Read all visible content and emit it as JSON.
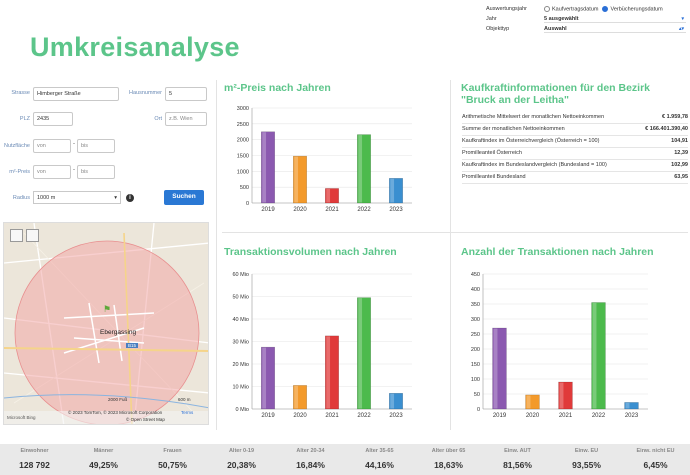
{
  "page": {
    "title": "Umkreisanalyse"
  },
  "filter": {
    "auswertungsjahr_label": "Auswertungsjahr",
    "option_kauf": "Kaufvertragsdatum",
    "option_verb": "Verbücherungsdatum",
    "jahr_label": "Jahr",
    "jahr_value": "5 ausgewählt",
    "objekttyp_label": "Objekttyp",
    "objekttyp_value": "Auswahl"
  },
  "form": {
    "strasse_label": "Strasse",
    "strasse_value": "Himberger Straße",
    "hausnummer_label": "Hausnummer",
    "hausnummer_value": "5",
    "plz_label": "PLZ",
    "plz_value": "2435",
    "ort_label": "Ort",
    "ort_placeholder": "z.B. Wien",
    "nutzflaeche_label": "Nutzfläche",
    "von_placeholder": "von",
    "bis_placeholder": "bis",
    "m2preis_label": "m²-Preis",
    "radius_label": "Radius",
    "radius_value": "1000 m",
    "info_icon": "i",
    "search_button": "Suchen"
  },
  "map": {
    "town_label": "Ebergassing",
    "road_label": "B15",
    "scale_ft": "2000 Fuß",
    "scale_m": "600 m",
    "attribution": "© 2023 TomTom, © 2023 Microsoft Corporation",
    "terms": "Terms",
    "osm": "© Open Street Map",
    "brand": "Microsoft Bing"
  },
  "sections": {
    "m2": "m²-Preis nach Jahren",
    "kk": "Kaufkraftinformationen für den Bezirk \"Bruck an der Leitha\"",
    "tv": "Transaktionsvolumen nach Jahren",
    "at": "Anzahl der Transaktionen nach Jahren"
  },
  "colors": {
    "accent": "#5cc58a",
    "button": "#2a78d4",
    "bars": [
      "#8b59b0",
      "#f39a2b",
      "#e03a3a",
      "#4cba4c",
      "#3a8fd0"
    ]
  },
  "kaufkraft": [
    {
      "label": "Arithmetische Mittelwert der monatlichen Nettoeinkommen",
      "value": "€ 1.959,78"
    },
    {
      "label": "Summe der monatlichen Nettoeinkommen",
      "value": "€ 166.401.390,40"
    },
    {
      "label": "Kaufkraftindex im Österreichvergleich (Österreich = 100)",
      "value": "104,91"
    },
    {
      "label": "Promilleanteil Österreich",
      "value": "12,39"
    },
    {
      "label": "Kaufkraftindex im Bundeslandvergleich (Bundesland = 100)",
      "value": "102,99"
    },
    {
      "label": "Promilleanteil Bundesland",
      "value": "63,95"
    }
  ],
  "chart_data": [
    {
      "type": "bar",
      "categories": [
        "2019",
        "2020",
        "2021",
        "2022",
        "2023"
      ],
      "values": [
        2250,
        1480,
        460,
        2160,
        780
      ],
      "ylim": [
        0,
        3000
      ],
      "yticks": [
        0,
        500,
        1000,
        1500,
        2000,
        2500,
        3000
      ],
      "ytick_labels": [
        "0",
        "500",
        "1000",
        "1500",
        "2000",
        "2500",
        "3000"
      ]
    },
    {
      "type": "bar",
      "categories": [
        "2019",
        "2020",
        "2021",
        "2022",
        "2023"
      ],
      "values": [
        27.5,
        10.5,
        32.5,
        49.5,
        7
      ],
      "ylim": [
        0,
        60
      ],
      "yticks": [
        0,
        10,
        20,
        30,
        40,
        50,
        60
      ],
      "ytick_labels": [
        "0 Mio",
        "10 Mio",
        "20 Mio",
        "30 Mio",
        "40 Mio",
        "50 Mio",
        "60 Mio"
      ]
    },
    {
      "type": "bar",
      "categories": [
        "2019",
        "2020",
        "2021",
        "2022",
        "2023"
      ],
      "values": [
        270,
        47,
        90,
        355,
        22
      ],
      "ylim": [
        0,
        450
      ],
      "yticks": [
        0,
        50,
        100,
        150,
        200,
        250,
        300,
        350,
        400,
        450
      ],
      "ytick_labels": [
        "0",
        "50",
        "100",
        "150",
        "200",
        "250",
        "300",
        "350",
        "400",
        "450"
      ]
    }
  ],
  "stats": [
    {
      "label": "Einwohner",
      "value": "128 792"
    },
    {
      "label": "Männer",
      "value": "49,25%"
    },
    {
      "label": "Frauen",
      "value": "50,75%"
    },
    {
      "label": "Alter 0-19",
      "value": "20,38%"
    },
    {
      "label": "Alter 20-34",
      "value": "16,84%"
    },
    {
      "label": "Alter 35-65",
      "value": "44,16%"
    },
    {
      "label": "Alter über 65",
      "value": "18,63%"
    },
    {
      "label": "Einw. AUT",
      "value": "81,56%"
    },
    {
      "label": "Einw. EU",
      "value": "93,55%"
    },
    {
      "label": "Einw. nicht EU",
      "value": "6,45%"
    }
  ]
}
